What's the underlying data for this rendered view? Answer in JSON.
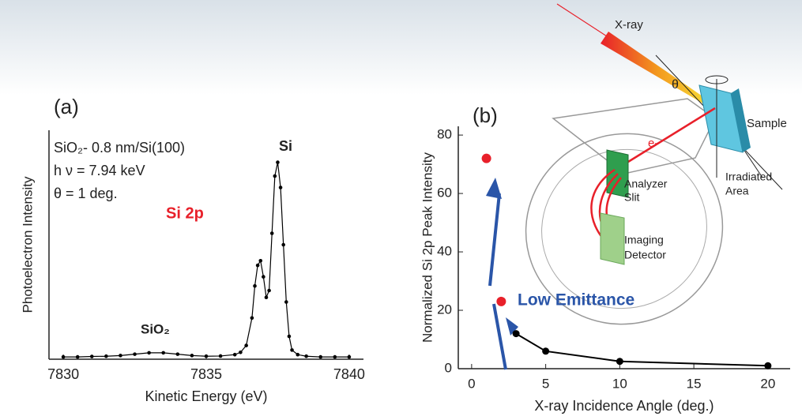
{
  "chart_data": [
    {
      "type": "line",
      "label": "(a)",
      "x_label": "Kinetic Energy (eV)",
      "y_label": "Photoelectron Intensity",
      "x": [
        7830,
        7830.5,
        7831,
        7831.5,
        7832,
        7832.5,
        7833,
        7833.5,
        7834,
        7834.5,
        7835,
        7835.5,
        7836,
        7836.2,
        7836.4,
        7836.6,
        7836.7,
        7836.8,
        7836.9,
        7837,
        7837.1,
        7837.2,
        7837.3,
        7837.4,
        7837.5,
        7837.6,
        7837.7,
        7837.8,
        7837.9,
        7838,
        7838.2,
        7838.5,
        7839,
        7839.5,
        7840
      ],
      "values": [
        1,
        1,
        1.2,
        1.3,
        1.6,
        2.2,
        2.8,
        2.8,
        2.2,
        1.6,
        1.3,
        1.4,
        2,
        3,
        6,
        18,
        32,
        41,
        43,
        36,
        27,
        30,
        55,
        80,
        86,
        75,
        50,
        25,
        10,
        4,
        2,
        1.3,
        1,
        1,
        1
      ],
      "color": "#000000",
      "xlim": [
        7829.5,
        7840.5
      ],
      "ylim": [
        0,
        100
      ],
      "xticks": [
        7830,
        7835,
        7840
      ],
      "yticks": [],
      "annotations": [
        "SiO₂- 0.8 nm/Si(100)",
        "h ν = 7.94 keV",
        "θ = 1 deg.",
        "Si 2p",
        "Si",
        "SiO₂"
      ]
    },
    {
      "type": "scatter",
      "label": "(b)",
      "x_label": "X-ray Incidence Angle  (deg.)",
      "y_label": "Normalized Si 2p Peak Intensity",
      "series": [
        {
          "color": "#000000",
          "x": [
            3,
            5,
            10,
            20
          ],
          "values": [
            12,
            6,
            2.5,
            1
          ],
          "line": true
        },
        {
          "color": "#e8202a",
          "x": [
            1,
            2
          ],
          "values": [
            72,
            23
          ],
          "line": false
        }
      ],
      "xlim": [
        -0.9,
        21.5
      ],
      "ylim": [
        0,
        83
      ],
      "xticks": [
        0,
        5,
        10,
        15,
        20
      ],
      "yticks": [
        0,
        20,
        40,
        60,
        80
      ],
      "annotations": [
        "Low Emittance",
        "X-ray",
        "θ",
        "Sample",
        "e-",
        "Analyzer",
        "Slit",
        "Irradiated",
        "Area",
        "Imaging",
        "Detector"
      ]
    }
  ]
}
